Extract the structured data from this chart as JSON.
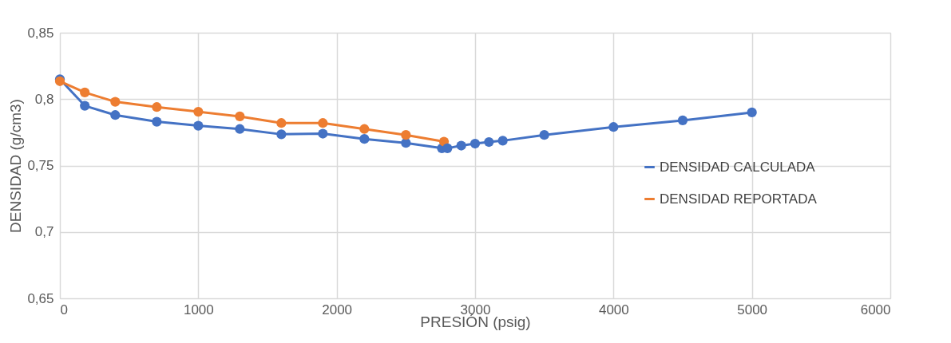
{
  "chart_data": {
    "type": "line",
    "xlabel": "PRESIÓN (psig)",
    "ylabel": "DENSIDAD (g/cm3)",
    "xlim": [
      0,
      6000
    ],
    "xticks": [
      0,
      1000,
      2000,
      3000,
      4000,
      5000,
      6000
    ],
    "ylim": [
      0.65,
      0.85
    ],
    "yticks": [
      {
        "value": 0.65,
        "label": "0,65"
      },
      {
        "value": 0.7,
        "label": "0,7"
      },
      {
        "value": 0.75,
        "label": "0,75"
      },
      {
        "value": 0.8,
        "label": "0,8"
      },
      {
        "value": 0.85,
        "label": "0,85"
      }
    ],
    "grid": true,
    "legend": "right",
    "marker": "circle",
    "line_style": "solid",
    "series": [
      {
        "name": "DENSIDAD CALCULADA",
        "color": "#4472c4",
        "x": [
          0,
          180,
          400,
          700,
          1000,
          1300,
          1600,
          1900,
          2200,
          2500,
          2760,
          2800,
          2900,
          3000,
          3100,
          3200,
          3500,
          4000,
          4500,
          5000
        ],
        "values": [
          0.815,
          0.795,
          0.788,
          0.783,
          0.78,
          0.7775,
          0.7735,
          0.774,
          0.77,
          0.767,
          0.763,
          0.763,
          0.765,
          0.7665,
          0.7677,
          0.7687,
          0.773,
          0.779,
          0.784,
          0.79
        ]
      },
      {
        "name": "DENSIDAD REPORTADA",
        "color": "#ed7d31",
        "x": [
          0,
          180,
          400,
          700,
          1000,
          1300,
          1600,
          1900,
          2200,
          2500,
          2775
        ],
        "values": [
          0.8135,
          0.805,
          0.798,
          0.794,
          0.7905,
          0.787,
          0.782,
          0.782,
          0.7775,
          0.773,
          0.768
        ]
      }
    ]
  }
}
